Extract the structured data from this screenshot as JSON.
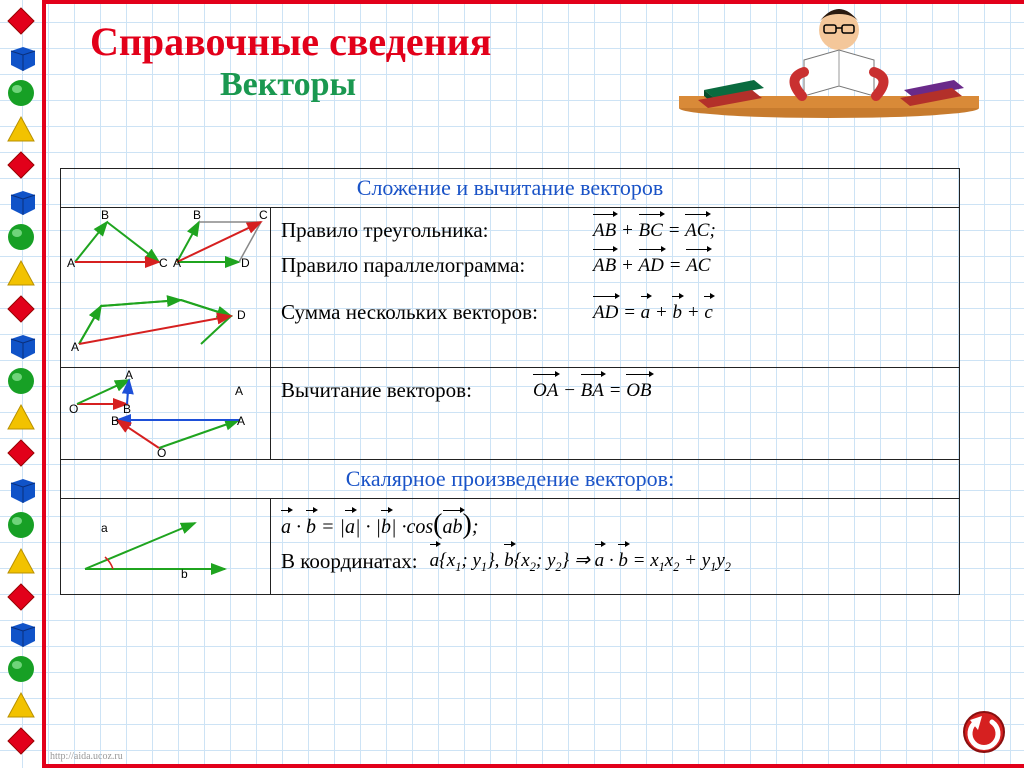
{
  "title_main": "Справочные сведения",
  "title_sub": "Векторы",
  "section1_header": "Сложение и вычитание векторов",
  "rules": {
    "triangle": {
      "label": "Правило треугольника:",
      "formula_lhs1": "AB",
      "formula_op1": "+",
      "formula_lhs2": "BC",
      "formula_eq": "=",
      "formula_rhs": "AC",
      "tail": ";"
    },
    "parallelogram": {
      "label": "Правило параллелограмма:",
      "formula_lhs1": "AB",
      "formula_op1": "+",
      "formula_lhs2": "AD",
      "formula_eq": "=",
      "formula_rhs": "AC"
    },
    "sum": {
      "label": "Сумма нескольких векторов:",
      "formula_lhs": "AD",
      "formula_eq": "=",
      "formula_a": "a",
      "formula_b": "b",
      "formula_c": "c"
    },
    "subtract": {
      "label": "Вычитание векторов:",
      "formula_lhs1": "OA",
      "formula_op1": "−",
      "formula_lhs2": "BA",
      "formula_eq": "=",
      "formula_rhs": "OB"
    }
  },
  "section2_header": "Скалярное произведение векторов:",
  "dot": {
    "f1_a": "a",
    "f1_b": "b",
    "f1_text": "·cos",
    "f1_ab": "ab",
    "f1_tail": ";",
    "coords_label": "В координатах:",
    "ax": "a",
    "x1": "x",
    "y1": "y",
    "bx": "b",
    "x2": "x",
    "y2": "y",
    "impl": "⇒"
  },
  "diagram_labels": {
    "tri": {
      "A": "A",
      "B": "B",
      "C": "C"
    },
    "par": {
      "A": "A",
      "B": "B",
      "C": "C",
      "D": "D"
    },
    "sum": {
      "A": "A",
      "D": "D"
    },
    "sub": {
      "O": "O",
      "A": "A",
      "B": "B"
    },
    "dot": {
      "a": "a",
      "b": "b"
    }
  },
  "colors": {
    "red": "#e2001a",
    "green_title": "#1a9850",
    "blue_header": "#1a53c7",
    "vec_green": "#1fa41f",
    "vec_red": "#d62020",
    "vec_blue": "#1e50d8",
    "grid": "#cde3f5",
    "border": "#222222"
  },
  "shapes_column": [
    {
      "type": "diamond",
      "color": "#e2001a"
    },
    {
      "type": "cube",
      "color": "#1053c8"
    },
    {
      "type": "circle",
      "color": "#17a025"
    },
    {
      "type": "triangle",
      "color": "#f2c200"
    },
    {
      "type": "diamond",
      "color": "#e2001a"
    },
    {
      "type": "cube",
      "color": "#1053c8"
    },
    {
      "type": "circle",
      "color": "#17a025"
    },
    {
      "type": "triangle",
      "color": "#f2c200"
    },
    {
      "type": "diamond",
      "color": "#e2001a"
    },
    {
      "type": "cube",
      "color": "#1053c8"
    },
    {
      "type": "circle",
      "color": "#17a025"
    },
    {
      "type": "triangle",
      "color": "#f2c200"
    },
    {
      "type": "diamond",
      "color": "#e2001a"
    },
    {
      "type": "cube",
      "color": "#1053c8"
    },
    {
      "type": "circle",
      "color": "#17a025"
    },
    {
      "type": "triangle",
      "color": "#f2c200"
    },
    {
      "type": "diamond",
      "color": "#e2001a"
    },
    {
      "type": "cube",
      "color": "#1053c8"
    },
    {
      "type": "circle",
      "color": "#17a025"
    },
    {
      "type": "triangle",
      "color": "#f2c200"
    },
    {
      "type": "diamond",
      "color": "#e2001a"
    }
  ],
  "footer_url": "http://aida.ucoz.ru"
}
